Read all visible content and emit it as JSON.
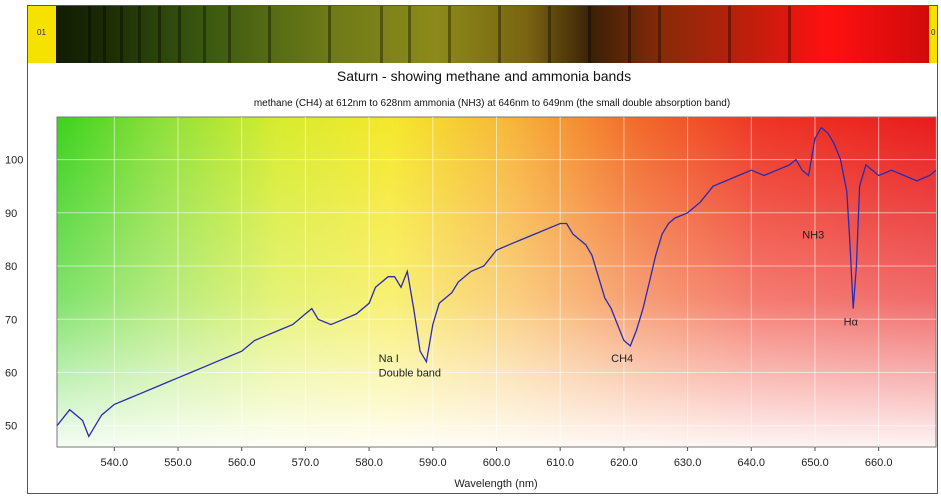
{
  "chart_data": {
    "type": "line",
    "title": "Saturn - showing methane and ammonia bands",
    "subtitle": "methane (CH4) at 612nm to 628nm  ammonia (NH3) at 646nm to 649nm (the small double absorption band)",
    "xlabel": "Wavelength (nm)",
    "ylabel": "",
    "xlim": [
      531,
      669
    ],
    "ylim": [
      46,
      108
    ],
    "grid": true,
    "x_ticks": [
      "540.0",
      "550.0",
      "560.0",
      "570.0",
      "580.0",
      "590.0",
      "600.0",
      "610.0",
      "620.0",
      "630.0",
      "640.0",
      "650.0",
      "660.0"
    ],
    "y_ticks": [
      "50",
      "60",
      "70",
      "80",
      "90",
      "100"
    ],
    "strip_labels": {
      "left": "01",
      "right": "0"
    },
    "annotations": [
      {
        "text": "Na I",
        "x": 581.5,
        "y": 62
      },
      {
        "text": "Double band",
        "x": 581.5,
        "y": 59.2
      },
      {
        "text": "CH4",
        "x": 618,
        "y": 62
      },
      {
        "text": "NH3",
        "x": 648,
        "y": 85.2
      },
      {
        "text": "Hα",
        "x": 654.5,
        "y": 68.8
      }
    ],
    "series": [
      {
        "color": "#2b2bb0",
        "x": [
          531,
          533,
          535,
          536,
          538,
          540,
          542,
          544,
          546,
          548,
          550,
          552,
          554,
          556,
          558,
          560,
          562,
          564,
          566,
          568,
          570,
          571,
          572,
          574,
          576,
          578,
          580,
          581,
          582,
          583,
          584,
          585,
          586,
          587,
          588,
          589,
          590,
          591,
          592,
          593,
          594,
          596,
          598,
          600,
          602,
          604,
          606,
          608,
          610,
          611,
          612,
          614,
          615,
          616,
          617,
          618,
          619,
          620,
          621,
          622,
          623,
          624,
          625,
          626,
          627,
          628,
          630,
          632,
          634,
          636,
          638,
          640,
          642,
          644,
          646,
          647,
          648,
          649,
          650,
          651,
          652,
          653,
          654,
          655,
          655.5,
          656,
          656.5,
          657,
          658,
          660,
          662,
          664,
          666,
          668,
          669
        ],
        "y": [
          50,
          53,
          51,
          48,
          52,
          54,
          55,
          56,
          57,
          58,
          59,
          60,
          61,
          62,
          63,
          64,
          66,
          67,
          68,
          69,
          71,
          72,
          70,
          69,
          70,
          71,
          73,
          76,
          77,
          78,
          78,
          76,
          79,
          72,
          64,
          62,
          69,
          73,
          74,
          75,
          77,
          79,
          80,
          83,
          84,
          85,
          86,
          87,
          88,
          88,
          86,
          84,
          82,
          78,
          74,
          72,
          69,
          66,
          65,
          68,
          72,
          77,
          82,
          86,
          88,
          89,
          90,
          92,
          95,
          96,
          97,
          98,
          97,
          98,
          99,
          100,
          98,
          97,
          104,
          106,
          105,
          103,
          100,
          94,
          84,
          72,
          80,
          95,
          99,
          97,
          98,
          97,
          96,
          97,
          98
        ]
      }
    ]
  }
}
